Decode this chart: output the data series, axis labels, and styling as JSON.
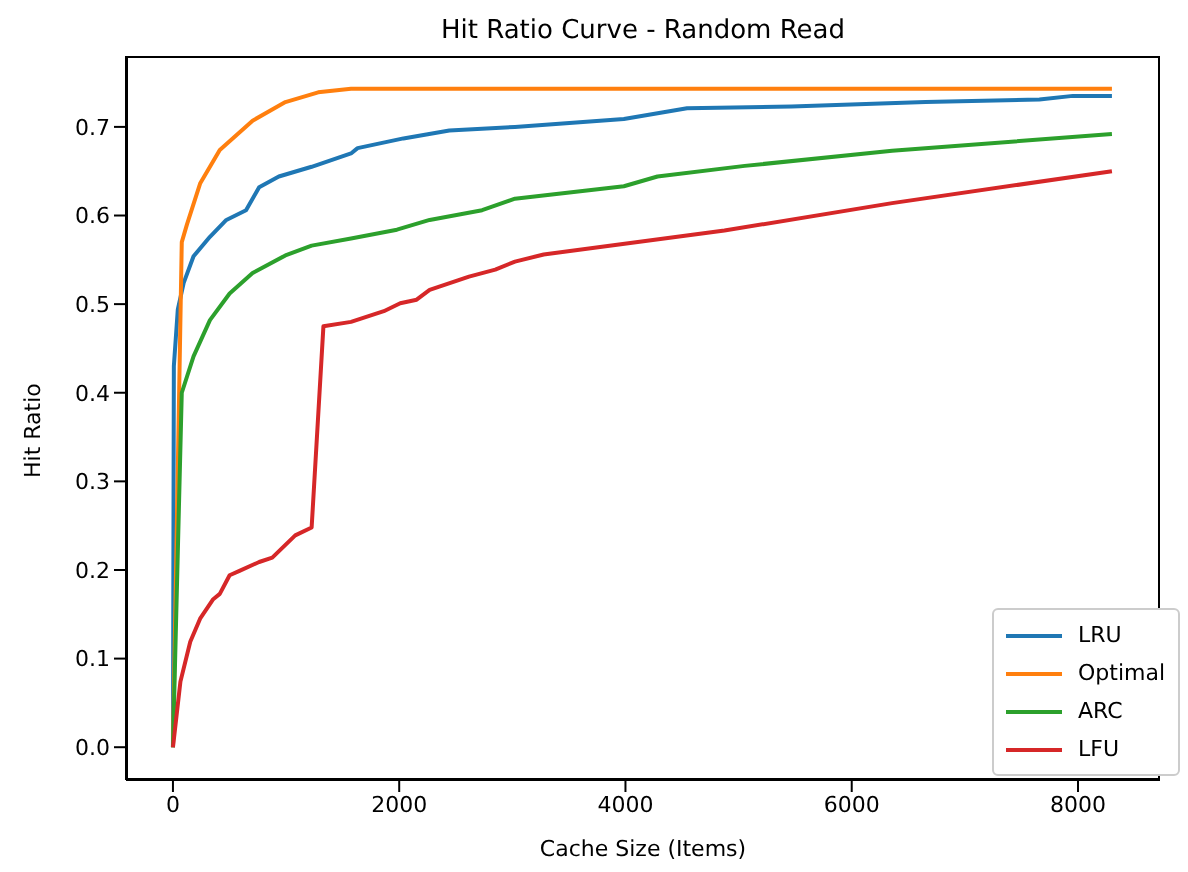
{
  "chart_data": {
    "type": "line",
    "title": "Hit Ratio Curve - Random Read",
    "xlabel": "Cache Size (Items)",
    "ylabel": "Hit Ratio",
    "xlim": [
      -415,
      8725
    ],
    "xticks": [
      0,
      2000,
      4000,
      6000,
      8000
    ],
    "ylim": [
      -0.037,
      0.78
    ],
    "yticks": [
      {
        "value": 0,
        "label": "0.0"
      },
      {
        "value": 0.1,
        "label": "0.1"
      },
      {
        "value": 0.2,
        "label": "0.2"
      },
      {
        "value": 0.3,
        "label": "0.3"
      },
      {
        "value": 0.4,
        "label": "0.4"
      },
      {
        "value": 0.5,
        "label": "0.5"
      },
      {
        "value": 0.6,
        "label": "0.6"
      },
      {
        "value": 0.7,
        "label": "0.7"
      }
    ],
    "grid": false,
    "legend": "bottom right",
    "marker": "none",
    "line_style": "solid",
    "series": [
      {
        "name": "LRU",
        "color": "#1f77b4",
        "x": [
          0,
          8,
          43,
          95,
          182,
          327,
          472,
          646,
          762,
          936,
          1226,
          1574,
          1632,
          2037,
          2443,
          3023,
          3986,
          4544,
          5468,
          6652,
          7659,
          7955,
          8300
        ],
        "values": [
          0,
          0.43,
          0.494,
          0.524,
          0.554,
          0.576,
          0.595,
          0.606,
          0.632,
          0.644,
          0.655,
          0.67,
          0.676,
          0.687,
          0.696,
          0.7,
          0.709,
          0.721,
          0.723,
          0.728,
          0.731,
          0.735,
          0.735
        ]
      },
      {
        "name": "Optimal",
        "color": "#ff7f0e",
        "x": [
          0,
          78,
          124,
          240,
          414,
          704,
          994,
          1284,
          1574,
          8300
        ],
        "values": [
          0,
          0.57,
          0.59,
          0.636,
          0.674,
          0.707,
          0.728,
          0.739,
          0.743,
          0.743
        ]
      },
      {
        "name": "ARC",
        "color": "#2ca02c",
        "x": [
          0,
          78,
          182,
          327,
          501,
          704,
          994,
          1226,
          1574,
          1980,
          2269,
          2733,
          3023,
          3986,
          4283,
          5054,
          6357,
          8300
        ],
        "values": [
          0,
          0.4,
          0.441,
          0.482,
          0.512,
          0.535,
          0.555,
          0.566,
          0.574,
          0.584,
          0.595,
          0.606,
          0.619,
          0.633,
          0.644,
          0.656,
          0.673,
          0.692
        ]
      },
      {
        "name": "LFU",
        "color": "#d62728",
        "x": [
          0,
          66,
          153,
          240,
          356,
          414,
          501,
          588,
          762,
          878,
          1081,
          1226,
          1330,
          1574,
          1864,
          2009,
          2154,
          2269,
          2617,
          2849,
          3023,
          3277,
          4875,
          6357,
          8300
        ],
        "values": [
          0,
          0.074,
          0.119,
          0.145,
          0.167,
          0.173,
          0.194,
          0.199,
          0.209,
          0.214,
          0.239,
          0.248,
          0.475,
          0.48,
          0.492,
          0.501,
          0.505,
          0.516,
          0.531,
          0.539,
          0.548,
          0.556,
          0.583,
          0.614,
          0.65
        ]
      }
    ]
  }
}
